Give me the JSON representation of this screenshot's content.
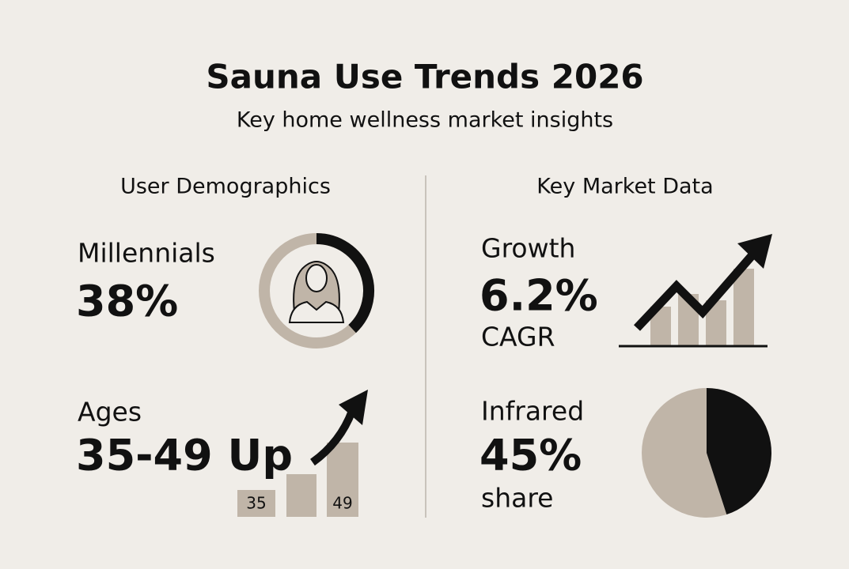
{
  "header": {
    "title": "Sauna Use Trends 2026",
    "subtitle": "Key home wellness market insights"
  },
  "left": {
    "heading": "User Demographics",
    "millennials": {
      "label": "Millennials",
      "value": 38,
      "value_label": "38%"
    },
    "ages": {
      "label": "Ages",
      "value_label": "35-49 Up",
      "bar_labels": [
        "35",
        "49"
      ]
    }
  },
  "right": {
    "heading": "Key Market Data",
    "growth": {
      "label": "Growth",
      "value_label": "6.2%",
      "unit": "CAGR"
    },
    "infrared": {
      "label": "Infrared",
      "value": 45,
      "value_label": "45%",
      "unit": "share"
    }
  }
}
